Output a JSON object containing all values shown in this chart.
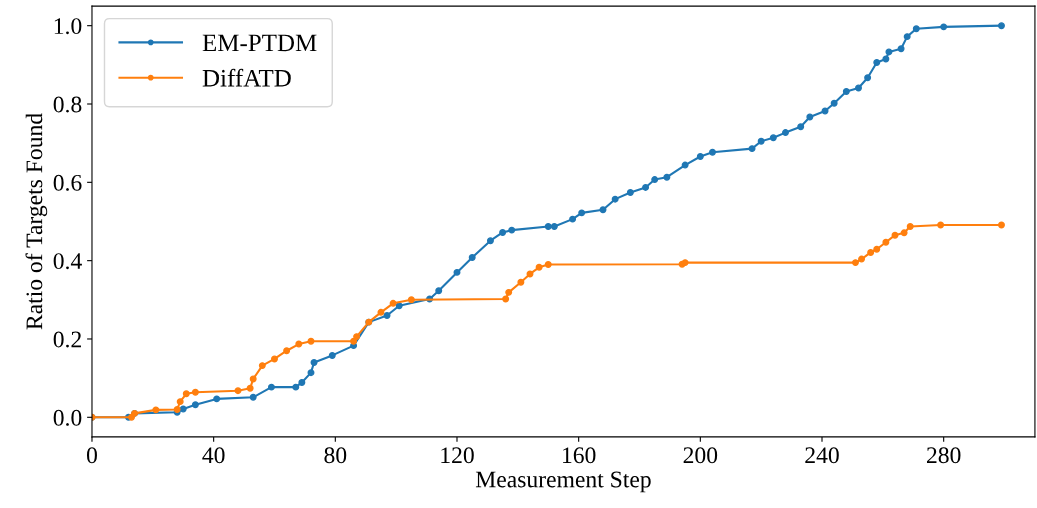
{
  "chart_data": {
    "type": "line",
    "xlabel": "Measurement Step",
    "ylabel": "Ratio of Targets Found",
    "xlim": [
      0,
      310
    ],
    "ylim": [
      -0.05,
      1.05
    ],
    "xticks": [
      0,
      40,
      80,
      120,
      160,
      200,
      240,
      280
    ],
    "yticks": [
      {
        "value": 0,
        "label": "0.0"
      },
      {
        "value": 0.2,
        "label": "0.2"
      },
      {
        "value": 0.4,
        "label": "0.4"
      },
      {
        "value": 0.6,
        "label": "0.6"
      },
      {
        "value": 0.8,
        "label": "0.8"
      },
      {
        "value": 1,
        "label": "1.0"
      }
    ],
    "legend": "top left",
    "marker": "circle",
    "line_style": "solid",
    "grid": false,
    "series": [
      {
        "name": "EM-PTDM",
        "color": "#1f77b4",
        "x": [
          0,
          12,
          14,
          28,
          30,
          34,
          41,
          53,
          59,
          67,
          69,
          72,
          73,
          79,
          86,
          91,
          97,
          101,
          111,
          114,
          120,
          125,
          131,
          135,
          138,
          150,
          152,
          158,
          161,
          168,
          172,
          177,
          182,
          185,
          189,
          195,
          200,
          204,
          217,
          220,
          224,
          228,
          233,
          236,
          241,
          244,
          248,
          252,
          255,
          258,
          261,
          262,
          266,
          268,
          271,
          280,
          299
        ],
        "values": [
          0,
          0,
          0.01,
          0.013,
          0.021,
          0.032,
          0.047,
          0.051,
          0.077,
          0.077,
          0.089,
          0.114,
          0.14,
          0.158,
          0.183,
          0.243,
          0.26,
          0.285,
          0.302,
          0.323,
          0.37,
          0.408,
          0.451,
          0.472,
          0.478,
          0.487,
          0.487,
          0.506,
          0.522,
          0.53,
          0.557,
          0.574,
          0.587,
          0.607,
          0.613,
          0.644,
          0.666,
          0.677,
          0.686,
          0.705,
          0.714,
          0.727,
          0.742,
          0.767,
          0.782,
          0.802,
          0.832,
          0.841,
          0.867,
          0.906,
          0.915,
          0.933,
          0.941,
          0.972,
          0.992,
          0.997,
          1.0
        ]
      },
      {
        "name": "DiffATD",
        "color": "#ff7f0e",
        "x": [
          0,
          13,
          14,
          21,
          28,
          29,
          31,
          34,
          48,
          52,
          53,
          56,
          60,
          64,
          68,
          72,
          86,
          87,
          91,
          95,
          99,
          105,
          136,
          137,
          141,
          144,
          147,
          150,
          194,
          195,
          251,
          253,
          256,
          258,
          261,
          264,
          267,
          269,
          279,
          299
        ],
        "values": [
          0,
          0,
          0.01,
          0.019,
          0.02,
          0.04,
          0.06,
          0.064,
          0.068,
          0.074,
          0.098,
          0.132,
          0.149,
          0.17,
          0.187,
          0.194,
          0.194,
          0.206,
          0.243,
          0.268,
          0.291,
          0.3,
          0.302,
          0.319,
          0.345,
          0.366,
          0.383,
          0.39,
          0.391,
          0.395,
          0.395,
          0.404,
          0.421,
          0.429,
          0.447,
          0.465,
          0.471,
          0.487,
          0.491,
          0.491
        ]
      }
    ]
  }
}
